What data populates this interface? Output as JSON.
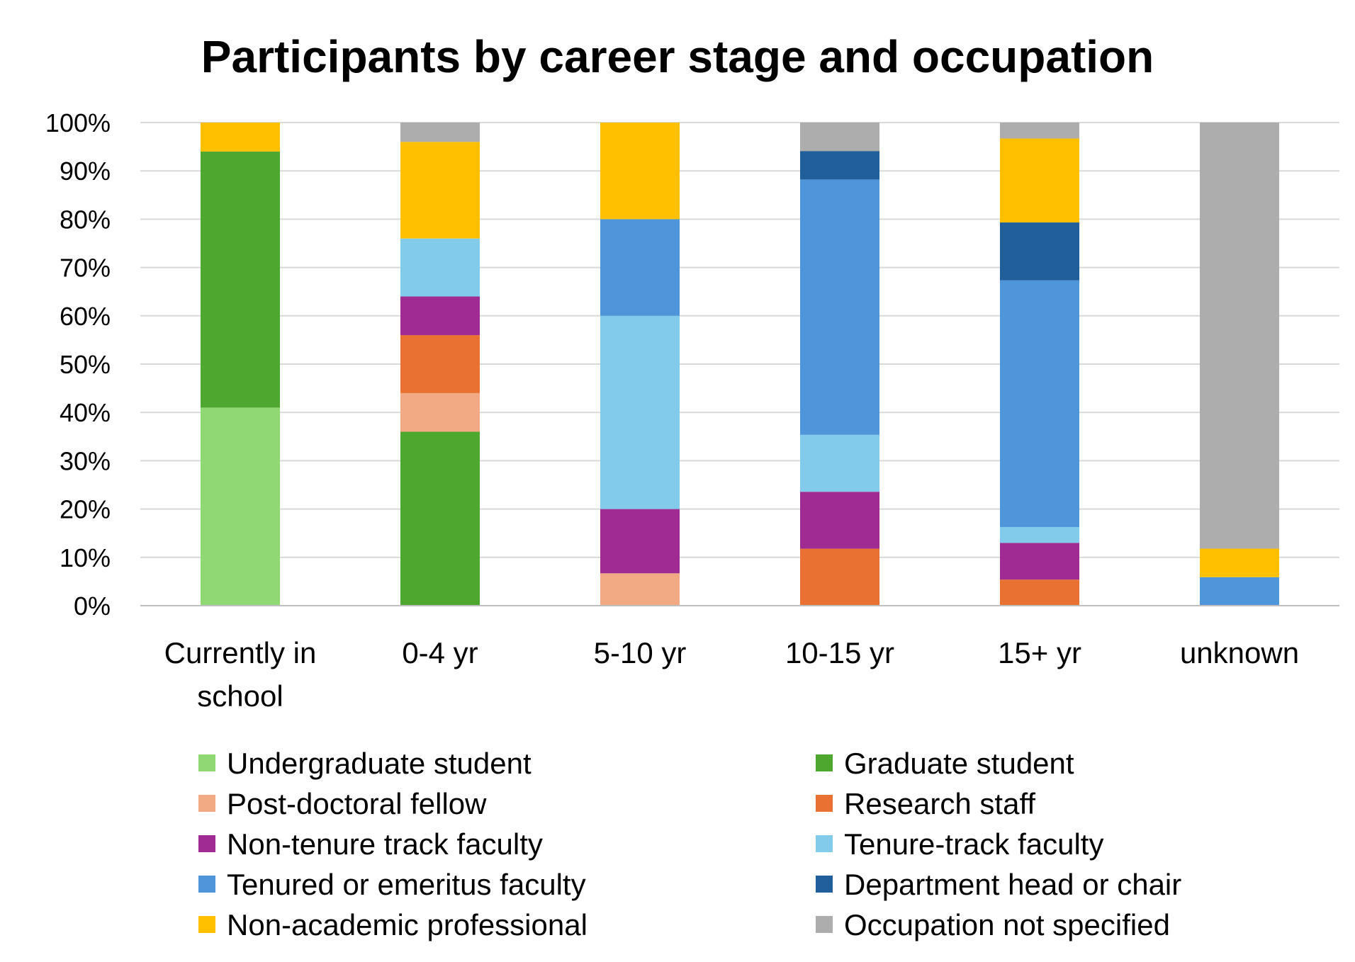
{
  "chart_data": {
    "type": "bar",
    "stacked": true,
    "percent_stacked": true,
    "title": "Participants by career stage and occupation",
    "xlabel": "",
    "ylabel": "",
    "ylim": [
      0,
      100
    ],
    "yticks": [
      "0%",
      "10%",
      "20%",
      "30%",
      "40%",
      "50%",
      "60%",
      "70%",
      "80%",
      "90%",
      "100%"
    ],
    "grid": true,
    "legend_position": "bottom",
    "categories": [
      "Currently in school",
      "0-4 yr",
      "5-10 yr",
      "10-15 yr",
      "15+ yr",
      "unknown"
    ],
    "category_label_lines": [
      [
        "Currently in",
        "school"
      ],
      [
        "0-4 yr"
      ],
      [
        "5-10 yr"
      ],
      [
        "10-15 yr"
      ],
      [
        "15+ yr"
      ],
      [
        "unknown"
      ]
    ],
    "series": [
      {
        "name": "Undergraduate student",
        "color": "#8fd873",
        "values": [
          41,
          0,
          0,
          0,
          0,
          0
        ]
      },
      {
        "name": "Graduate student",
        "color": "#4ea72e",
        "values": [
          53,
          36,
          0,
          0,
          0,
          0
        ]
      },
      {
        "name": "Post-doctoral fellow",
        "color": "#f2aa84",
        "values": [
          0,
          8,
          6.7,
          0,
          0,
          0
        ]
      },
      {
        "name": "Research staff",
        "color": "#e97132",
        "values": [
          0,
          12,
          0,
          11.8,
          5.4,
          0
        ]
      },
      {
        "name": "Non-tenure track faculty",
        "color": "#a02b93",
        "values": [
          0,
          8,
          13.3,
          11.8,
          7.6,
          0
        ]
      },
      {
        "name": "Tenure-track faculty",
        "color": "#83cbeb",
        "values": [
          0,
          12,
          40,
          11.8,
          3.3,
          0
        ]
      },
      {
        "name": "Tenured or emeritus faculty",
        "color": "#4e95d9",
        "values": [
          0,
          0,
          20,
          52.9,
          51.1,
          5.9
        ]
      },
      {
        "name": "Department head or chair",
        "color": "#215f9a",
        "values": [
          0,
          0,
          0,
          5.9,
          12,
          0
        ]
      },
      {
        "name": "Non-academic professional",
        "color": "#ffc000",
        "values": [
          6,
          20,
          20,
          0,
          17.4,
          5.9
        ]
      },
      {
        "name": "Occupation not specified",
        "color": "#adadad",
        "values": [
          0,
          4,
          0,
          5.9,
          3.3,
          88.2
        ]
      }
    ]
  }
}
